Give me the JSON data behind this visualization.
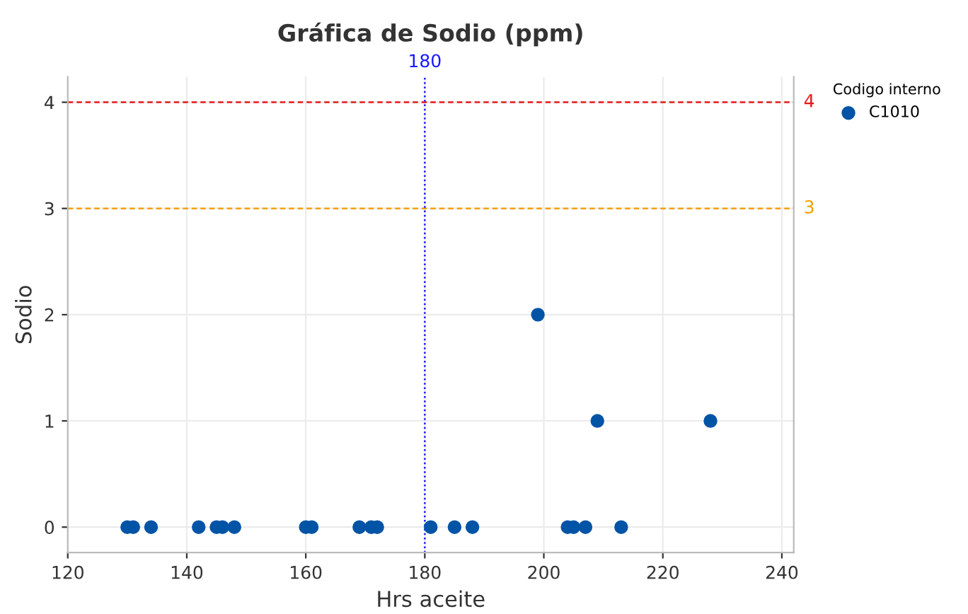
{
  "chart_data": {
    "type": "scatter",
    "title": "Gráfica de Sodio (ppm)",
    "xlabel": "Hrs aceite",
    "ylabel": "Sodio",
    "legend_title": "Codigo interno",
    "series": [
      {
        "name": "C1010",
        "color": "#0054a6",
        "x": [
          130,
          131,
          134,
          142,
          145,
          146,
          148,
          160,
          161,
          169,
          171,
          172,
          181,
          185,
          188,
          199,
          204,
          205,
          207,
          209,
          213,
          228
        ],
        "values": [
          0,
          0,
          0,
          0,
          0,
          0,
          0,
          0,
          0,
          0,
          0,
          0,
          0,
          0,
          0,
          2,
          0,
          0,
          0,
          1,
          0,
          1
        ]
      }
    ],
    "xlim": [
      120,
      242
    ],
    "xticks": [
      120,
      140,
      160,
      180,
      200,
      220,
      240
    ],
    "ylim": [
      -0.24,
      4.24
    ],
    "yticks": [
      0,
      1,
      2,
      3,
      4
    ],
    "ref_lines": [
      {
        "axis": "y",
        "value": 4,
        "label": "4",
        "color": "#e41a1c",
        "line_style": "dashed"
      },
      {
        "axis": "y",
        "value": 3,
        "label": "3",
        "color": "#f5a000",
        "line_style": "dashed"
      },
      {
        "axis": "x",
        "value": 180,
        "label": "180",
        "color": "#1a1aff",
        "line_style": "dotted"
      }
    ],
    "grid": true,
    "legend": "top right",
    "marker": "circle"
  }
}
